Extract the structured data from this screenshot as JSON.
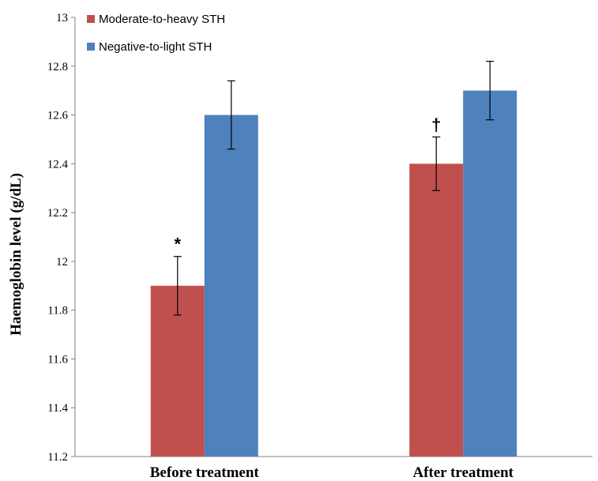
{
  "chart_data": {
    "type": "bar",
    "categories": [
      "Before treatment",
      "After treatment"
    ],
    "series": [
      {
        "name": "Moderate-to-heavy STH",
        "values": [
          11.9,
          12.4
        ],
        "errors": [
          0.12,
          0.11
        ],
        "color": "#c0504d",
        "annotations": [
          "*",
          "†"
        ]
      },
      {
        "name": "Negative-to-light STH",
        "values": [
          12.6,
          12.7
        ],
        "errors": [
          0.14,
          0.12
        ],
        "color": "#4f81bd",
        "annotations": [
          "",
          ""
        ]
      }
    ],
    "xlabel": "",
    "ylabel": "Haemoglobin level (g/dL)",
    "ylim": [
      11.2,
      13
    ],
    "yticks": [
      11.2,
      11.4,
      11.6,
      11.8,
      12,
      12.2,
      12.4,
      12.6,
      12.8,
      13
    ],
    "grid": false,
    "legend_position": "top-left"
  }
}
